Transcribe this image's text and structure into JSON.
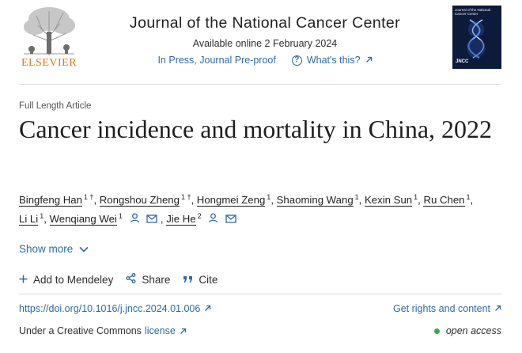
{
  "header": {
    "publisher": "ELSEVIER",
    "journal_title": "Journal of the National Cancer Center",
    "available_online": "Available online 2 February 2024",
    "status": "In Press, Journal Pre-proof",
    "whats_this": "What's this?",
    "cover_title": "Journal of the National Cancer Center",
    "cover_mark": "JNCC"
  },
  "article": {
    "type": "Full Length Article",
    "title": "Cancer incidence and mortality in China, 2022",
    "authors": [
      {
        "name": "Bingfeng Han",
        "sup": "1 †"
      },
      {
        "name": "Rongshou Zheng",
        "sup": "1 †"
      },
      {
        "name": "Hongmei Zeng",
        "sup": "1"
      },
      {
        "name": "Shaoming Wang",
        "sup": "1"
      },
      {
        "name": "Kexin Sun",
        "sup": "1"
      },
      {
        "name": "Ru Chen",
        "sup": "1"
      },
      {
        "name": "Li Li",
        "sup": "1"
      },
      {
        "name": "Wenqiang Wei",
        "sup": "1"
      },
      {
        "name": "Jie He",
        "sup": "2"
      }
    ],
    "show_more": "Show more"
  },
  "actions": {
    "mendeley": "Add to Mendeley",
    "share": "Share",
    "cite": "Cite"
  },
  "links": {
    "doi": "https://doi.org/10.1016/j.jncc.2024.01.006",
    "rights": "Get rights and content",
    "license_prefix": "Under a Creative Commons",
    "license_link": "license",
    "open_access": "open access"
  },
  "colors": {
    "link": "#2e6ba8",
    "elsevier_orange": "#e9711c",
    "open_access_dot": "#3aa655"
  }
}
